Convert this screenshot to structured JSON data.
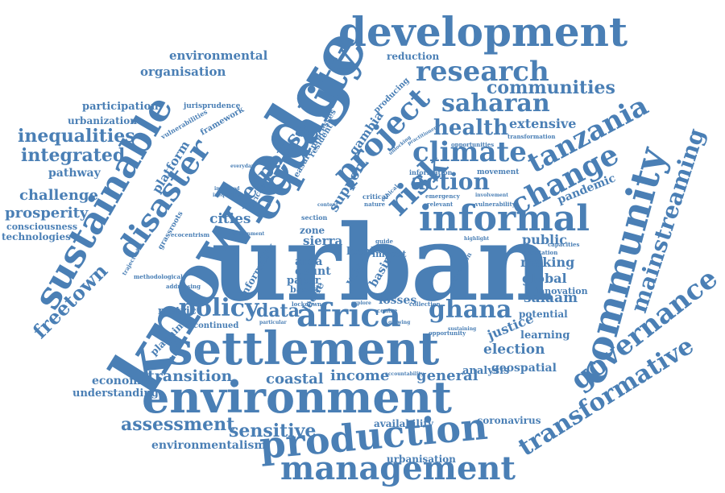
{
  "color": "#4a7fb5",
  "words": [
    {
      "text": "urban",
      "size": 4
    },
    {
      "text": "knowledge",
      "size": 4
    },
    {
      "text": "settlement",
      "size": 3
    },
    {
      "text": "environment",
      "size": 3
    },
    {
      "text": "development",
      "size": 3
    },
    {
      "text": "sustainable",
      "size": 3
    },
    {
      "text": "equality",
      "size": 3
    },
    {
      "text": "community",
      "size": 3
    },
    {
      "text": "production",
      "size": 3
    },
    {
      "text": "management",
      "size": 3
    },
    {
      "text": "informal",
      "size": 3
    },
    {
      "text": "africa",
      "size": 3
    },
    {
      "text": "project",
      "size": 2
    },
    {
      "text": "climate",
      "size": 2
    },
    {
      "text": "change",
      "size": 2
    },
    {
      "text": "research",
      "size": 2
    },
    {
      "text": "saharan",
      "size": 2
    },
    {
      "text": "tanzania",
      "size": 2
    },
    {
      "text": "disaster",
      "size": 2
    },
    {
      "text": "governance",
      "size": 2
    },
    {
      "text": "mainstreaming",
      "size": 2
    },
    {
      "text": "transformative",
      "size": 2
    },
    {
      "text": "policy",
      "size": 2
    },
    {
      "text": "ghana",
      "size": 2
    },
    {
      "text": "risk",
      "size": 2
    },
    {
      "text": "response",
      "size": 2
    },
    {
      "text": "action",
      "size": 2
    },
    {
      "text": "health",
      "size": 2
    },
    {
      "text": "freetown",
      "size": 2
    },
    {
      "text": "communities",
      "size": 1
    },
    {
      "text": "inequalities",
      "size": 1
    },
    {
      "text": "integrated",
      "size": 1
    },
    {
      "text": "assessment",
      "size": 1
    },
    {
      "text": "sensitive",
      "size": 1
    },
    {
      "text": "transition",
      "size": 1
    },
    {
      "text": "income",
      "size": 1
    },
    {
      "text": "general",
      "size": 1
    },
    {
      "text": "coastal",
      "size": 1
    },
    {
      "text": "data",
      "size": 1
    },
    {
      "text": "extensive",
      "size": 1
    },
    {
      "text": "challenge",
      "size": 1
    },
    {
      "text": "prosperity",
      "size": 1
    },
    {
      "text": "pathway",
      "size": 1
    },
    {
      "text": "environmental",
      "size": 1
    },
    {
      "text": "organisation",
      "size": 1
    },
    {
      "text": "participation",
      "size": 1
    },
    {
      "text": "urbanization",
      "size": 1
    },
    {
      "text": "platform",
      "size": 1
    },
    {
      "text": "cities",
      "size": 1
    },
    {
      "text": "public",
      "size": 1
    },
    {
      "text": "making",
      "size": 1
    },
    {
      "text": "global",
      "size": 1
    },
    {
      "text": "salaam",
      "size": 1
    },
    {
      "text": "pandemic",
      "size": 1
    },
    {
      "text": "election",
      "size": 1
    },
    {
      "text": "justice",
      "size": 1
    },
    {
      "text": "learning",
      "size": 1
    },
    {
      "text": "geospatial",
      "size": 1
    },
    {
      "text": "coronavirus",
      "size": 1
    },
    {
      "text": "environmentalism",
      "size": 1
    },
    {
      "text": "urbanisation",
      "size": 1
    },
    {
      "text": "economic",
      "size": 1
    },
    {
      "text": "understanding",
      "size": 1
    },
    {
      "text": "reduction",
      "size": 1
    },
    {
      "text": "technologies",
      "size": 1
    },
    {
      "text": "consciousness",
      "size": 1
    },
    {
      "text": "metric",
      "size": 1
    },
    {
      "text": "planning",
      "size": 1
    },
    {
      "text": "continued",
      "size": 1
    },
    {
      "text": "potential",
      "size": 1
    },
    {
      "text": "innovation",
      "size": 1
    },
    {
      "text": "analysis",
      "size": 1
    },
    {
      "text": "availability",
      "size": 1
    },
    {
      "text": "support",
      "size": 1
    },
    {
      "text": "gambia",
      "size": 1
    },
    {
      "text": "sierra",
      "size": 1
    },
    {
      "text": "area",
      "size": 1
    },
    {
      "text": "count",
      "size": 1
    },
    {
      "text": "paper",
      "size": 1
    },
    {
      "text": "based",
      "size": 1
    },
    {
      "text": "losses",
      "size": 1
    },
    {
      "text": "basin",
      "size": 1
    },
    {
      "text": "zone",
      "size": 1
    },
    {
      "text": "local",
      "size": 1
    },
    {
      "text": "impact",
      "size": 1
    },
    {
      "text": "producing",
      "size": 1
    },
    {
      "text": "resident",
      "size": 1
    },
    {
      "text": "informality",
      "size": 1
    },
    {
      "text": "leone",
      "size": 1
    },
    {
      "text": "volta",
      "size": 1
    },
    {
      "text": "jurisprudence",
      "size": 1
    },
    {
      "text": "framework",
      "size": 1
    },
    {
      "text": "vulnerabilities",
      "size": 1
    },
    {
      "text": "grassroots",
      "size": 1
    },
    {
      "text": "ecocentrism",
      "size": 1
    },
    {
      "text": "trajectories",
      "size": 1
    },
    {
      "text": "methodological",
      "size": 1
    },
    {
      "text": "addressing",
      "size": 1
    },
    {
      "text": "information",
      "size": 1
    },
    {
      "text": "movement",
      "size": 1
    },
    {
      "text": "opportunities",
      "size": 1
    },
    {
      "text": "transformation",
      "size": 1
    },
    {
      "text": "capacities",
      "size": 1
    },
    {
      "text": "adaptation",
      "size": 1
    },
    {
      "text": "section",
      "size": 1
    },
    {
      "text": "lockdown",
      "size": 1
    },
    {
      "text": "collection",
      "size": 1
    },
    {
      "text": "emergency",
      "size": 1
    },
    {
      "text": "vulnerability",
      "size": 1
    },
    {
      "text": "relevant",
      "size": 1
    },
    {
      "text": "critical",
      "size": 1
    },
    {
      "text": "nature",
      "size": 1
    },
    {
      "text": "ethical",
      "size": 1
    },
    {
      "text": "centre",
      "size": 1
    },
    {
      "text": "guide",
      "size": 1
    },
    {
      "text": "opportunity",
      "size": 1
    },
    {
      "text": "accountability",
      "size": 1
    },
    {
      "text": "particular",
      "size": 1
    },
    {
      "text": "improved",
      "size": 1
    },
    {
      "text": "protection",
      "size": 1
    },
    {
      "text": "practitioner",
      "size": 1
    },
    {
      "text": "government",
      "size": 1
    },
    {
      "text": "highlight",
      "size": 1
    },
    {
      "text": "measure processes",
      "size": 1
    },
    {
      "text": "african",
      "size": 1
    },
    {
      "text": "inequality",
      "size": 1
    },
    {
      "text": "everyday",
      "size": 1
    },
    {
      "text": "explore",
      "size": 1
    },
    {
      "text": "growing",
      "size": 1
    },
    {
      "text": "sustaining",
      "size": 1
    },
    {
      "text": "content",
      "size": 1
    },
    {
      "text": "unlocking",
      "size": 1
    },
    {
      "text": "involvement",
      "size": 1
    }
  ]
}
